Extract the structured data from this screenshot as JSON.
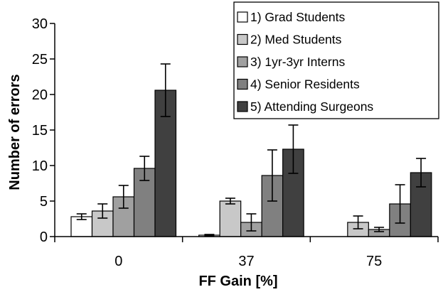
{
  "chart_data": {
    "type": "bar",
    "title": "",
    "xlabel": "FF Gain [%]",
    "ylabel": "Number of errors",
    "categories": [
      "0",
      "37",
      "75"
    ],
    "ylim": [
      0,
      30
    ],
    "yticks": [
      "0",
      "5",
      "10",
      "15",
      "20",
      "25",
      "30"
    ],
    "grid": false,
    "legend_position": "top-right",
    "error_bars": true,
    "series": [
      {
        "name": "1) Grad Students",
        "color": "#ffffff",
        "values": [
          2.8,
          0.2,
          0.0
        ],
        "errors": [
          0.4,
          0.1,
          0.0
        ]
      },
      {
        "name": "2) Med Students",
        "color": "#c8c8c8",
        "values": [
          3.6,
          5.0,
          2.0
        ],
        "errors": [
          1.0,
          0.4,
          0.9
        ]
      },
      {
        "name": "3) 1yr-3yr Interns",
        "color": "#a0a0a0",
        "values": [
          5.6,
          2.0,
          1.0
        ],
        "errors": [
          1.6,
          1.2,
          0.3
        ]
      },
      {
        "name": "4) Senior Residents",
        "color": "#808080",
        "values": [
          9.6,
          8.6,
          4.6
        ],
        "errors": [
          1.7,
          3.6,
          2.7
        ]
      },
      {
        "name": "5) Attending Surgeons",
        "color": "#404040",
        "values": [
          20.6,
          12.3,
          9.0
        ],
        "errors": [
          3.7,
          3.4,
          2.0
        ]
      }
    ]
  }
}
